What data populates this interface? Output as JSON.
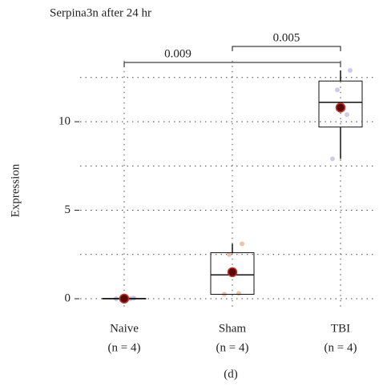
{
  "chart_data": {
    "type": "box",
    "title": "Serpina3n after 24 hr",
    "ylabel": "Expression",
    "caption": "(d)",
    "categories": [
      "Naive",
      "Sham",
      "TBI"
    ],
    "group_sizes": [
      "(n = 4)",
      "(n = 4)",
      "(n = 4)"
    ],
    "boxes": [
      {
        "whisker_low": 0,
        "q1": 0,
        "median": 0,
        "q3": 0.02,
        "whisker_high": 0.03,
        "mean": 0.01,
        "points": [
          0,
          0,
          0.01,
          0.03
        ]
      },
      {
        "whisker_low": 0.25,
        "q1": 0.25,
        "median": 1.35,
        "q3": 2.6,
        "whisker_high": 3.1,
        "mean": 1.5,
        "points": [
          0.25,
          0.3,
          2.5,
          3.1
        ]
      },
      {
        "whisker_low": 7.9,
        "q1": 9.7,
        "median": 11.1,
        "q3": 12.3,
        "whisker_high": 12.9,
        "mean": 10.8,
        "points": [
          7.9,
          10.4,
          11.8,
          12.9
        ]
      }
    ],
    "point_colors": [
      "#b8b8d8",
      "#e8b8a0",
      "#c4c4e4"
    ],
    "mean_color": "#5a0808",
    "annotations": [
      "0.009",
      "0.005"
    ],
    "ylim": [
      -0.6,
      13.0
    ],
    "yticks": [
      0,
      5,
      10
    ],
    "yminor": [
      2.5,
      7.5,
      12.5
    ],
    "grid": true
  }
}
